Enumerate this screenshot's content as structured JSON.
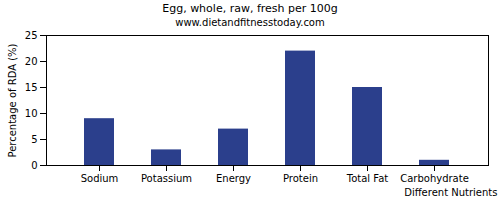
{
  "chart_data": {
    "type": "bar",
    "title": "Egg, whole, raw, fresh per 100g",
    "subtitle": "www.dietandfitnesstoday.com",
    "x_label": "Different Nutrients",
    "y_label": "Percentage of RDA (%)",
    "categories": [
      "Sodium",
      "Potassium",
      "Energy",
      "Protein",
      "Total Fat",
      "Carbohydrate"
    ],
    "values": [
      9,
      3,
      7,
      22,
      15,
      1
    ],
    "color": "#2b3f8c",
    "ylim": [
      0,
      25
    ],
    "yticks": [
      0,
      5,
      10,
      15,
      20,
      25
    ],
    "grid": false
  }
}
